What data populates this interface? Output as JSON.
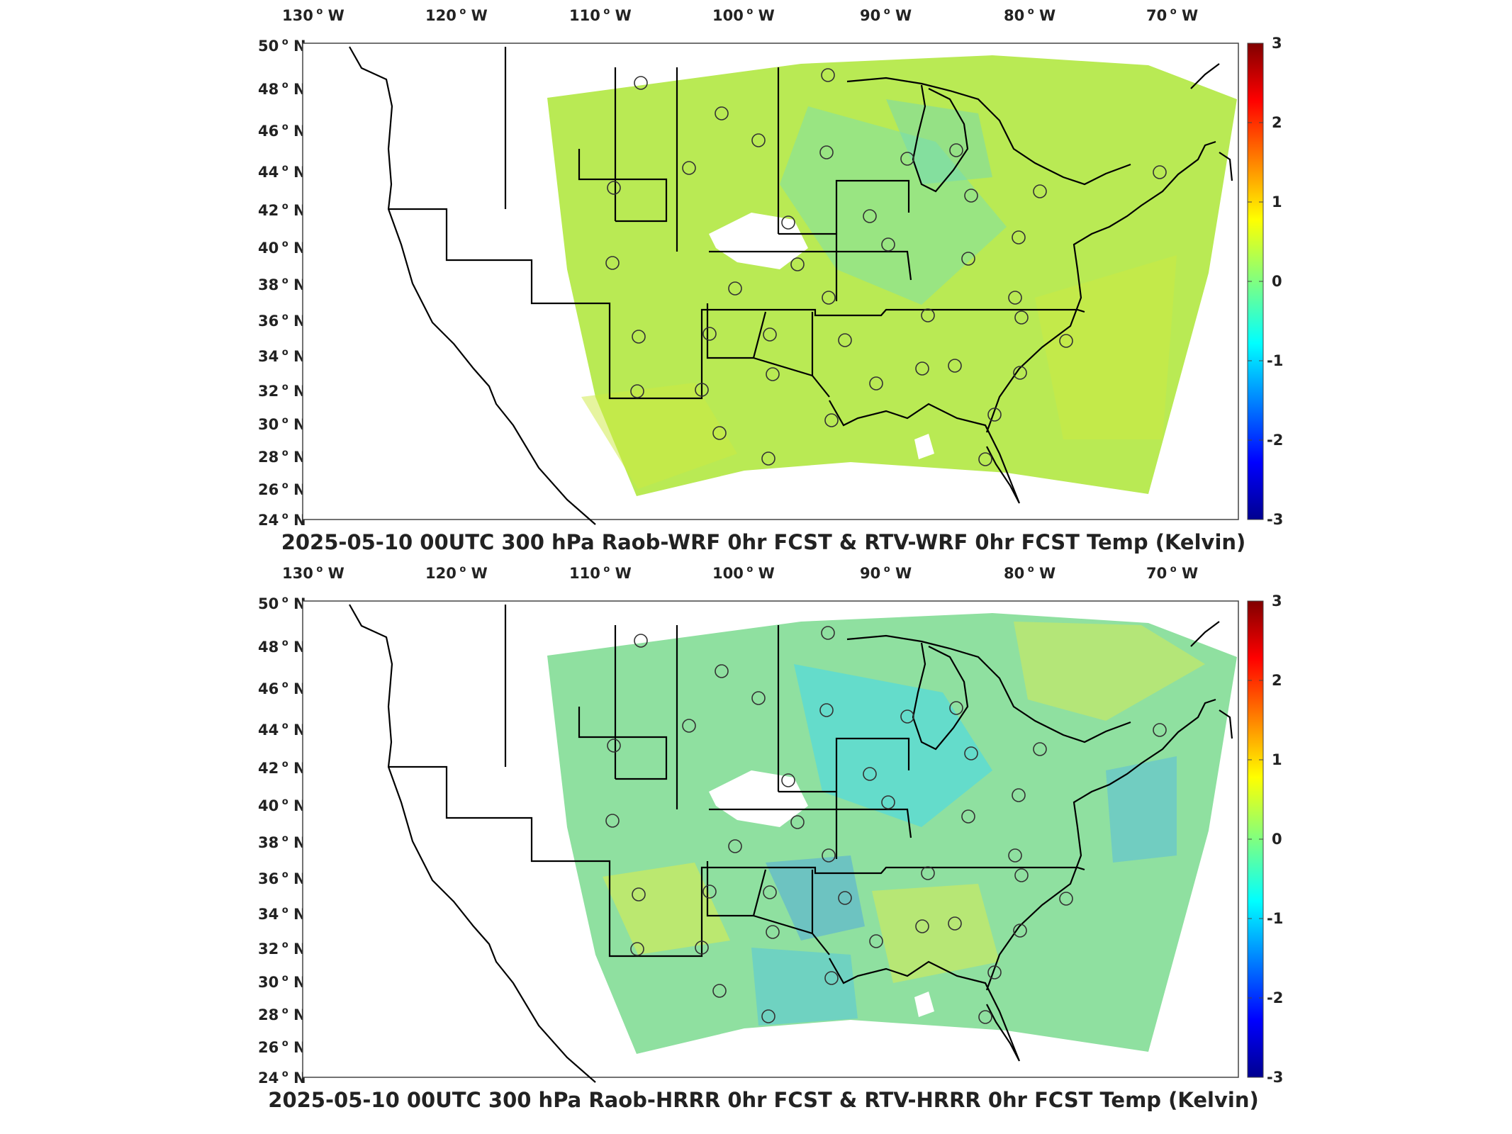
{
  "panels": [
    {
      "id": "wrf",
      "title": "2025-05-10 00UTC 300 hPa Raob-WRF 0hr FCST & RTV-WRF 0hr FCST Temp (Kelvin)",
      "field_tint": "#b9ea54",
      "lon_labels": [
        {
          "deg": "130",
          "dir": "W"
        },
        {
          "deg": "120",
          "dir": "W"
        },
        {
          "deg": "110",
          "dir": "W"
        },
        {
          "deg": "100",
          "dir": "W"
        },
        {
          "deg": "90",
          "dir": "W"
        },
        {
          "deg": "80",
          "dir": "W"
        },
        {
          "deg": "70",
          "dir": "W"
        }
      ],
      "lat_labels": [
        {
          "deg": "50",
          "dir": "N"
        },
        {
          "deg": "48",
          "dir": "N"
        },
        {
          "deg": "46",
          "dir": "N"
        },
        {
          "deg": "44",
          "dir": "N"
        },
        {
          "deg": "42",
          "dir": "N"
        },
        {
          "deg": "40",
          "dir": "N"
        },
        {
          "deg": "38",
          "dir": "N"
        },
        {
          "deg": "36",
          "dir": "N"
        },
        {
          "deg": "34",
          "dir": "N"
        },
        {
          "deg": "32",
          "dir": "N"
        },
        {
          "deg": "30",
          "dir": "N"
        },
        {
          "deg": "28",
          "dir": "N"
        },
        {
          "deg": "26",
          "dir": "N"
        },
        {
          "deg": "24",
          "dir": "N"
        }
      ],
      "colorbar_ticks": [
        "3",
        "2",
        "1",
        "0",
        "-1",
        "-2",
        "-3"
      ]
    },
    {
      "id": "hrrr",
      "title": "2025-05-10 00UTC 300 hPa Raob-HRRR 0hr FCST & RTV-HRRR 0hr FCST Temp (Kelvin)",
      "field_tint": "#8fe0a0",
      "lon_labels": [
        {
          "deg": "130",
          "dir": "W"
        },
        {
          "deg": "120",
          "dir": "W"
        },
        {
          "deg": "110",
          "dir": "W"
        },
        {
          "deg": "100",
          "dir": "W"
        },
        {
          "deg": "90",
          "dir": "W"
        },
        {
          "deg": "80",
          "dir": "W"
        },
        {
          "deg": "70",
          "dir": "W"
        }
      ],
      "lat_labels": [
        {
          "deg": "50",
          "dir": "N"
        },
        {
          "deg": "48",
          "dir": "N"
        },
        {
          "deg": "46",
          "dir": "N"
        },
        {
          "deg": "44",
          "dir": "N"
        },
        {
          "deg": "42",
          "dir": "N"
        },
        {
          "deg": "40",
          "dir": "N"
        },
        {
          "deg": "38",
          "dir": "N"
        },
        {
          "deg": "36",
          "dir": "N"
        },
        {
          "deg": "34",
          "dir": "N"
        },
        {
          "deg": "32",
          "dir": "N"
        },
        {
          "deg": "30",
          "dir": "N"
        },
        {
          "deg": "28",
          "dir": "N"
        },
        {
          "deg": "26",
          "dir": "N"
        },
        {
          "deg": "24",
          "dir": "N"
        }
      ],
      "colorbar_ticks": [
        "3",
        "2",
        "1",
        "0",
        "-1",
        "-2",
        "-3"
      ]
    }
  ],
  "colorbar": {
    "range": [
      -3,
      3
    ],
    "colors": [
      "#00008f",
      "#0000ff",
      "#0080ff",
      "#00ffff",
      "#80ff80",
      "#ffff00",
      "#ff8000",
      "#ff0000",
      "#800000"
    ]
  }
}
